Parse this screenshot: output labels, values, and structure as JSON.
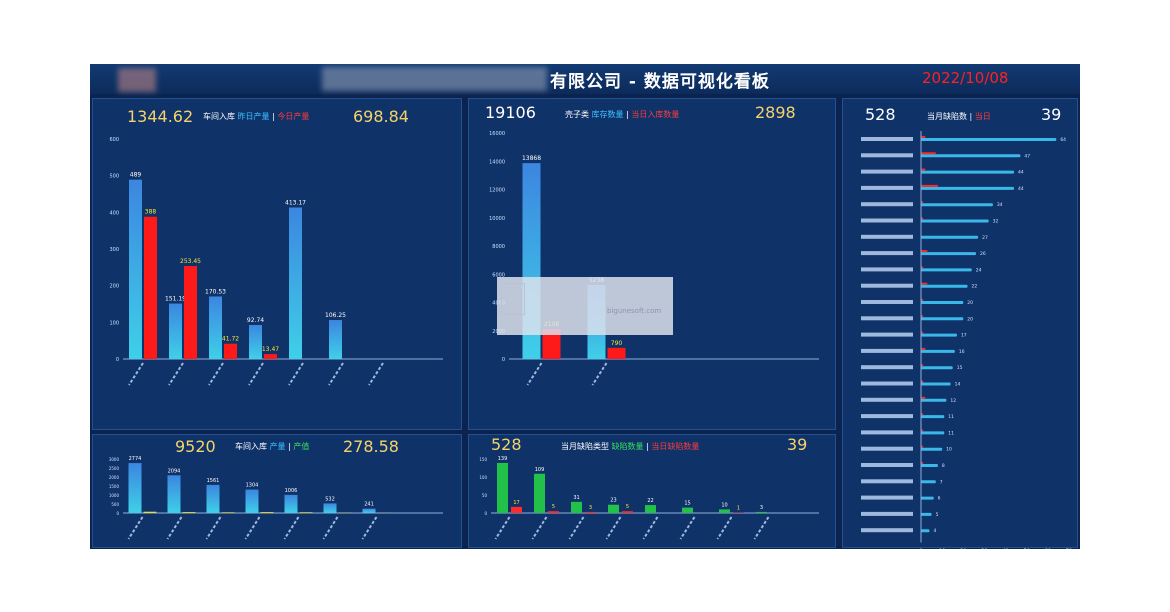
{
  "header": {
    "title": "有限公司 - 数据可视化看板",
    "date": "2022/10/08"
  },
  "panel1": {
    "left_num": "1344.62",
    "right_num": "698.84",
    "cap_a": "车间入库",
    "cap_b": "昨日产量",
    "cap_sep": "|",
    "cap_c": "今日产量"
  },
  "panel2": {
    "left_num": "19106",
    "right_num": "2898",
    "cap_a": "壳子类",
    "cap_b": "库存数量",
    "cap_sep": "|",
    "cap_c": "当日入库数量"
  },
  "panel3": {
    "left_num": "528",
    "right_num": "39",
    "cap_a": "当月缺陷数",
    "cap_sep": "|",
    "cap_c": "当日"
  },
  "panel4": {
    "left_num": "9520",
    "right_num": "278.58",
    "cap_a": "车间入库",
    "cap_b": "产量",
    "cap_sep": "|",
    "cap_g": "产值"
  },
  "panel5": {
    "left_num": "528",
    "right_num": "39",
    "cap_a": "当月缺陷类型",
    "cap_g": "缺陷数量",
    "cap_sep": "|",
    "cap_c": "当日缺陷数量"
  },
  "watermark": {
    "url": "bigunesoft.com"
  },
  "chart_data": [
    {
      "id": "panel1",
      "type": "bar",
      "ylim": [
        0,
        600
      ],
      "yticks": [
        0,
        100,
        200,
        300,
        400,
        500,
        600
      ],
      "colors": {
        "yesterday": "#3b9be6",
        "today": "#ff1a1a",
        "today_label": "#ffe83a",
        "yesterday_label": "#ffffff"
      },
      "categories": [
        "",
        "",
        "",
        "",
        "",
        "",
        ""
      ],
      "series": [
        {
          "values": [
            489,
            151.19,
            170.53,
            92.74,
            413.17,
            106.25,
            0
          ],
          "labels": [
            "489",
            "151.19",
            "170.53",
            "92.74",
            "413.17",
            "106.25",
            ""
          ]
        },
        {
          "values": [
            388,
            253.45,
            41.72,
            13.47,
            0,
            0,
            0
          ],
          "labels": [
            "388",
            "253.45",
            "41.72",
            "13.47",
            "",
            "",
            ""
          ]
        }
      ]
    },
    {
      "id": "panel2",
      "type": "bar",
      "ylim": [
        0,
        16000
      ],
      "yticks": [
        0,
        2000,
        4000,
        6000,
        8000,
        10000,
        12000,
        14000,
        16000
      ],
      "colors": {
        "stock": "#3b9be6",
        "today": "#ff1a1a",
        "today_label": "#ffe83a"
      },
      "categories": [
        "",
        ""
      ],
      "series": [
        {
          "values": [
            13868,
            5238
          ],
          "labels": [
            "13868",
            "5238"
          ]
        },
        {
          "values": [
            2108,
            790
          ],
          "labels": [
            "2108",
            "790"
          ]
        }
      ]
    },
    {
      "id": "panel3",
      "type": "bar",
      "orientation": "horizontal",
      "xlim": [
        0,
        70
      ],
      "xticks": [
        0,
        10,
        20,
        30,
        40,
        50,
        60,
        70
      ],
      "colors": {
        "month": "#3bb8e8",
        "today": "#ff2a2a"
      },
      "categories": [
        "",
        "",
        "",
        "",
        "",
        "",
        "",
        "",
        "",
        "",
        "",
        "",
        "",
        "",
        "",
        "",
        "",
        "",
        "",
        "",
        "",
        "",
        "",
        "",
        ""
      ],
      "series": [
        {
          "values": [
            64,
            47,
            44,
            44,
            34,
            32,
            27,
            26,
            24,
            22,
            20,
            20,
            17,
            16,
            15,
            14,
            12,
            11,
            11,
            10,
            8,
            7,
            6,
            5,
            4
          ]
        },
        {
          "values": [
            2,
            7,
            2,
            8,
            1,
            1,
            0,
            3,
            1,
            3,
            1,
            1,
            1,
            2,
            1,
            1,
            2,
            1,
            1,
            1,
            1,
            0,
            0,
            0,
            0
          ]
        }
      ]
    },
    {
      "id": "panel4",
      "type": "bar",
      "ylim": [
        0,
        3000
      ],
      "yticks": [
        0,
        500,
        1000,
        1500,
        2000,
        2500,
        3000
      ],
      "colors": {
        "qty": "#3b9be6",
        "value": "#e6e035"
      },
      "categories": [
        "",
        "",
        "",
        "",
        "",
        "",
        ""
      ],
      "series": [
        {
          "values": [
            2774,
            2094,
            1561,
            1304,
            1006,
            532,
            241
          ],
          "labels": [
            "2774",
            "2094",
            "1561",
            "1304",
            "1006",
            "532",
            "241"
          ]
        },
        {
          "values": [
            71.88,
            50.66,
            38.56,
            49.93,
            41.55,
            20.5,
            8.16
          ],
          "labels": [
            "",
            "",
            "",
            "",
            "",
            "",
            ""
          ]
        }
      ]
    },
    {
      "id": "panel5",
      "type": "bar",
      "ylim": [
        0,
        150
      ],
      "yticks": [
        0,
        50,
        100,
        150
      ],
      "colors": {
        "month": "#22c24a",
        "today": "#ff2a2a",
        "month_label": "#ffffff",
        "today_label": "#ffe83a"
      },
      "categories": [
        "",
        "",
        "",
        "",
        "",
        "",
        "",
        ""
      ],
      "series": [
        {
          "values": [
            139,
            109,
            31,
            23,
            22,
            15,
            10,
            3
          ],
          "labels": [
            "139",
            "109",
            "31",
            "23",
            "22",
            "15",
            "10",
            "3"
          ]
        },
        {
          "values": [
            17,
            5,
            3,
            5,
            0,
            0,
            1,
            0
          ],
          "labels": [
            "17",
            "5",
            "3",
            "5",
            "",
            "",
            "1",
            ""
          ]
        }
      ]
    }
  ]
}
